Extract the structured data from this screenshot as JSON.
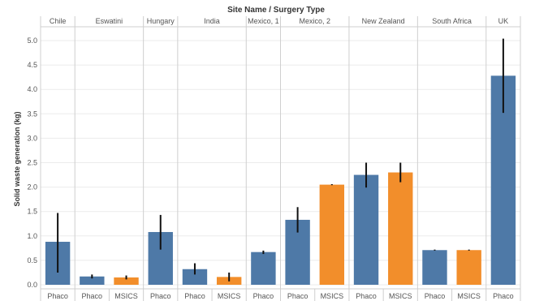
{
  "chart_data": {
    "type": "bar",
    "title": "Site Name  /  Surgery Type",
    "ylabel": "Solid waste generation (kg)",
    "ylim": [
      0,
      5.3
    ],
    "yticks": [
      0.0,
      0.5,
      1.0,
      1.5,
      2.0,
      2.5,
      3.0,
      3.5,
      4.0,
      4.5,
      5.0
    ],
    "ytick_labels": [
      "0.0",
      "0.5",
      "1.0",
      "1.5",
      "2.0",
      "2.5",
      "3.0",
      "3.5",
      "4.0",
      "4.5",
      "5.0"
    ],
    "grid": true,
    "colors": {
      "Phaco": "#4e79a7",
      "MSICS": "#f28e2b",
      "error_bar": "#111111"
    },
    "sites": [
      {
        "name": "Chile",
        "bars": [
          {
            "type": "Phaco",
            "value": 0.88,
            "err_low": 0.25,
            "err_high": 1.47
          }
        ]
      },
      {
        "name": "Eswatini",
        "bars": [
          {
            "type": "Phaco",
            "value": 0.17,
            "err_low": 0.13,
            "err_high": 0.21
          },
          {
            "type": "MSICS",
            "value": 0.15,
            "err_low": 0.11,
            "err_high": 0.19
          }
        ]
      },
      {
        "name": "Hungary",
        "bars": [
          {
            "type": "Phaco",
            "value": 1.08,
            "err_low": 0.72,
            "err_high": 1.43
          }
        ]
      },
      {
        "name": "India",
        "bars": [
          {
            "type": "Phaco",
            "value": 0.32,
            "err_low": 0.21,
            "err_high": 0.44
          },
          {
            "type": "MSICS",
            "value": 0.16,
            "err_low": 0.07,
            "err_high": 0.25
          }
        ]
      },
      {
        "name": "Mexico, 1",
        "bars": [
          {
            "type": "Phaco",
            "value": 0.67,
            "err_low": 0.63,
            "err_high": 0.7
          }
        ]
      },
      {
        "name": "Mexico, 2",
        "bars": [
          {
            "type": "Phaco",
            "value": 1.33,
            "err_low": 1.07,
            "err_high": 1.59
          },
          {
            "type": "MSICS",
            "value": 2.05,
            "err_low": 2.04,
            "err_high": 2.06
          }
        ]
      },
      {
        "name": "New Zealand",
        "bars": [
          {
            "type": "Phaco",
            "value": 2.25,
            "err_low": 1.99,
            "err_high": 2.5
          },
          {
            "type": "MSICS",
            "value": 2.3,
            "err_low": 2.1,
            "err_high": 2.5
          }
        ]
      },
      {
        "name": "South Africa",
        "bars": [
          {
            "type": "Phaco",
            "value": 0.71,
            "err_low": 0.7,
            "err_high": 0.72
          },
          {
            "type": "MSICS",
            "value": 0.71,
            "err_low": 0.7,
            "err_high": 0.72
          }
        ]
      },
      {
        "name": "UK",
        "bars": [
          {
            "type": "Phaco",
            "value": 4.28,
            "err_low": 3.52,
            "err_high": 5.04
          }
        ]
      }
    ]
  }
}
